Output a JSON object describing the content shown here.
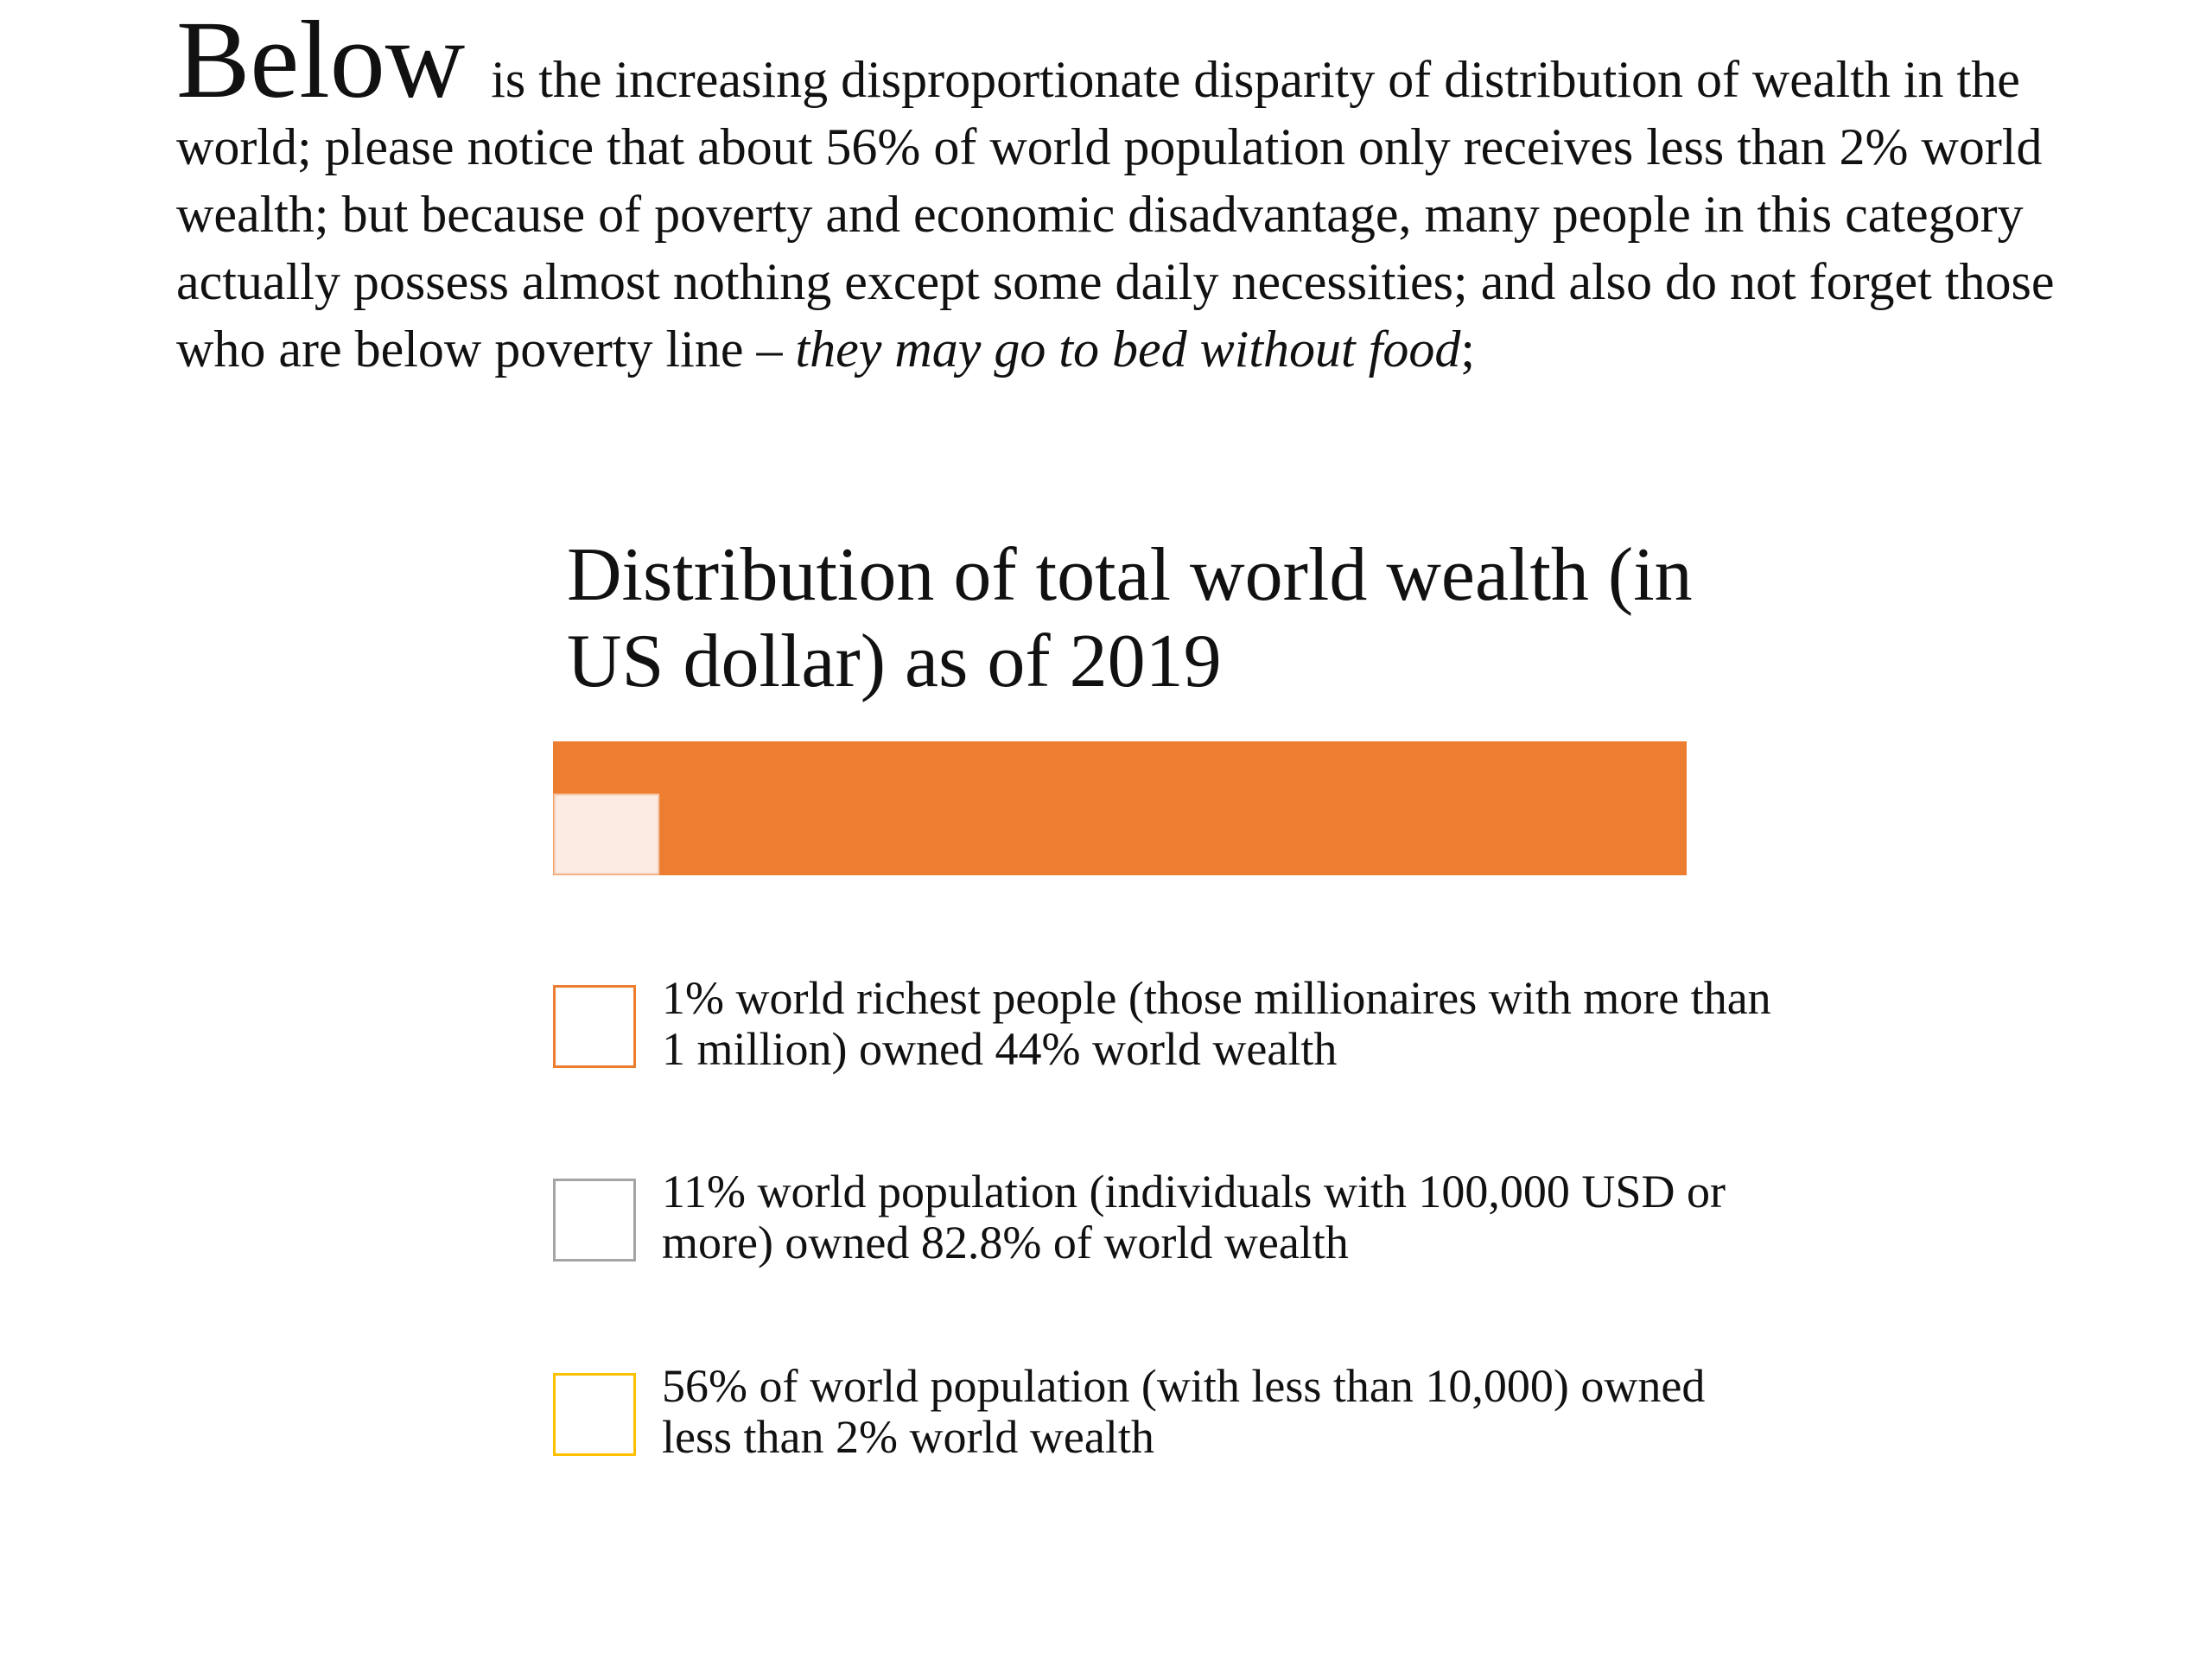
{
  "intro": {
    "lead_word": "Below",
    "text_main": "is the increasing disproportionate disparity of distribution of wealth in the world; please notice that about 56% of world population only receives less than 2% world wealth; but because of poverty and economic disadvantage, many people in this category actually possess almost nothing except some daily necessities; and also do not forget those who are below poverty line – ",
    "text_italic": "they may go to bed without food",
    "text_end": ";"
  },
  "chart_data": {
    "type": "bar",
    "orientation": "horizontal-stacked",
    "title": "Distribution of total world wealth (in US dollar) as of 2019",
    "unit": "% of world wealth",
    "xlim": [
      0,
      100
    ],
    "grid": false,
    "axes_visible": false,
    "legend_placement": "bottom",
    "series": [
      {
        "name": "1% world richest people (those millionaires with more than 1 million) owned 44% world wealth",
        "value": 44,
        "color": "#ED7D31"
      },
      {
        "name": "11% world population (individuals with 100,000 USD or more) owned 82.8% of world wealth",
        "value": 82.8,
        "color": "#A5A5A5"
      },
      {
        "name": "56% of world population (with less than 10,000) owned less than 2% world wealth",
        "value": 2,
        "color": "#FFC000"
      }
    ],
    "note_on_rendering": ""
  },
  "colors": {
    "bar_main": "#ED7D31",
    "bar_small": "#FBEBE2",
    "legend_1": "#ED7D31",
    "legend_2": "#A5A5A5",
    "legend_3": "#FFC000"
  }
}
